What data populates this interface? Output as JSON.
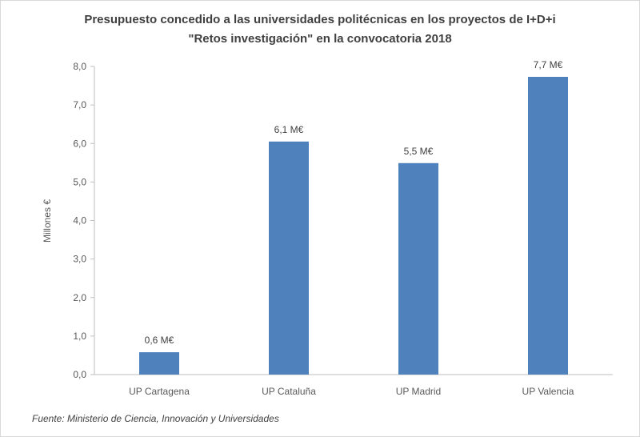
{
  "chart_data": {
    "type": "bar",
    "title": [
      "Presupuesto concedido a las universidades politécnicas en los proyectos de I+D+i",
      "\"Retos investigación\" en la convocatoria 2018"
    ],
    "ylabel": "Millones €",
    "xlabel": "",
    "ylim": [
      0,
      8
    ],
    "yticks": [
      "0,0",
      "1,0",
      "2,0",
      "3,0",
      "4,0",
      "5,0",
      "6,0",
      "7,0",
      "8,0"
    ],
    "categories": [
      "UP Cartagena",
      "UP Cataluña",
      "UP Madrid",
      "UP Valencia"
    ],
    "values": [
      0.58,
      6.05,
      5.49,
      7.73
    ],
    "data_labels": [
      "0,6 M€",
      "6,1 M€",
      "5,5 M€",
      "7,7 M€"
    ],
    "grid": false,
    "bar_color": "#4f81bd",
    "source": "Fuente: Ministerio de Ciencia, Innovación y Universidades"
  }
}
